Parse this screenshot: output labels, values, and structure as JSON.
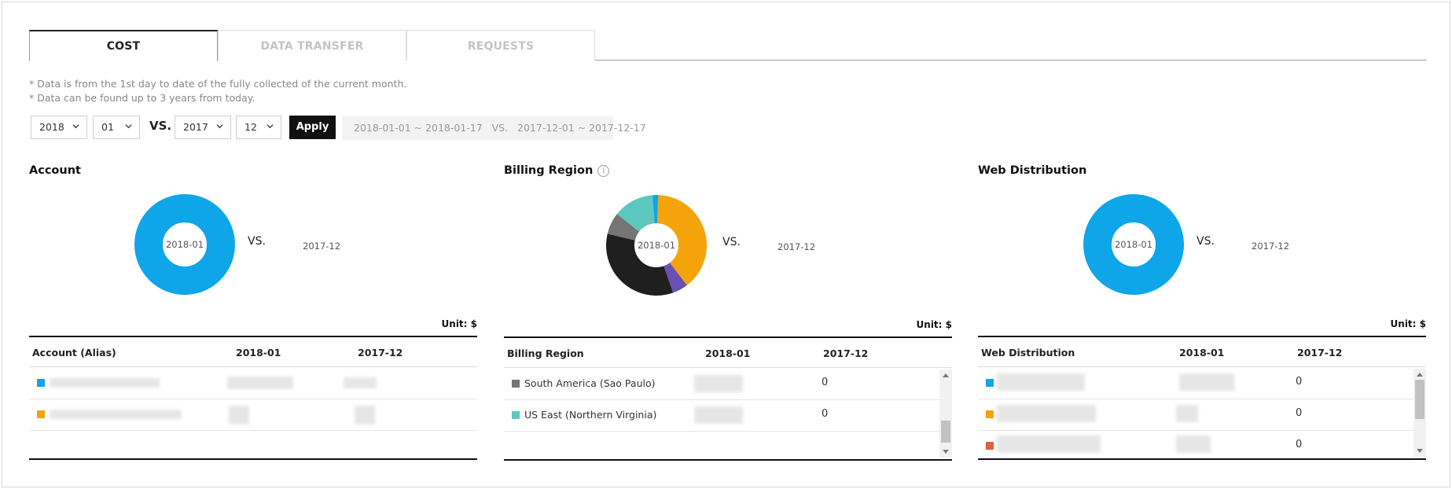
{
  "tabs": [
    {
      "label": "COST",
      "active": true
    },
    {
      "label": "DATA TRANSFER",
      "active": false
    },
    {
      "label": "REQUESTS",
      "active": false
    }
  ],
  "notes": [
    "* Data is from the 1st day to date of the fully collected of the current month.",
    "* Data can be found up to 3 years from today."
  ],
  "filters": {
    "year1": "2018",
    "month1": "01",
    "vs_label": "VS.",
    "year2": "2017",
    "month2": "12",
    "apply_label": "Apply",
    "range_text": "2018-01-01 ~ 2018-01-17   VS.   2017-12-01 ~ 2017-12-17"
  },
  "colors": {
    "blue": "#0ea5e9",
    "orange": "#f5a30a",
    "dark": "#1f1f1f",
    "gray": "#757575",
    "teal": "#5cc8c0",
    "purple": "#6a4fb5",
    "red_orange": "#e0603a"
  },
  "panels": {
    "account": {
      "title": "Account",
      "center_label": "2018-01",
      "vs": "VS.",
      "compare_label": "2017-12",
      "unit": "Unit: $",
      "columns": [
        "Account (Alias)",
        "2018-01",
        "2017-12"
      ],
      "rows": [
        {
          "swatch": "blue",
          "name": "",
          "current": "",
          "previous": ""
        },
        {
          "swatch": "orange",
          "name": "",
          "current": "",
          "previous": ""
        }
      ]
    },
    "billing_region": {
      "title": "Billing Region",
      "info_icon": "info-icon",
      "center_label": "2018-01",
      "vs": "VS.",
      "compare_label": "2017-12",
      "unit": "Unit: $",
      "columns": [
        "Billing Region",
        "2018-01",
        "2017-12"
      ],
      "rows": [
        {
          "swatch": "gray",
          "name": "South America (Sao Paulo)",
          "current": "",
          "previous": "0"
        },
        {
          "swatch": "teal",
          "name": "US East (Northern Virginia)",
          "current": "",
          "previous": "0"
        }
      ],
      "donut_shares": [
        {
          "color": "orange",
          "value": 0.39
        },
        {
          "color": "purple",
          "value": 0.05
        },
        {
          "color": "dark",
          "value": 0.34
        },
        {
          "color": "gray",
          "value": 0.07
        },
        {
          "color": "teal",
          "value": 0.13
        },
        {
          "color": "blue",
          "value": 0.02
        }
      ]
    },
    "web_distribution": {
      "title": "Web Distribution",
      "center_label": "2018-01",
      "vs": "VS.",
      "compare_label": "2017-12",
      "unit": "Unit: $",
      "columns": [
        "Web Distribution",
        "2018-01",
        "2017-12"
      ],
      "rows": [
        {
          "swatch": "blue",
          "name": "",
          "current": "",
          "previous": "0"
        },
        {
          "swatch": "orange",
          "name": "",
          "current": "",
          "previous": "0"
        },
        {
          "swatch": "red_orange",
          "name": "",
          "current": "",
          "previous": "0"
        }
      ]
    }
  }
}
